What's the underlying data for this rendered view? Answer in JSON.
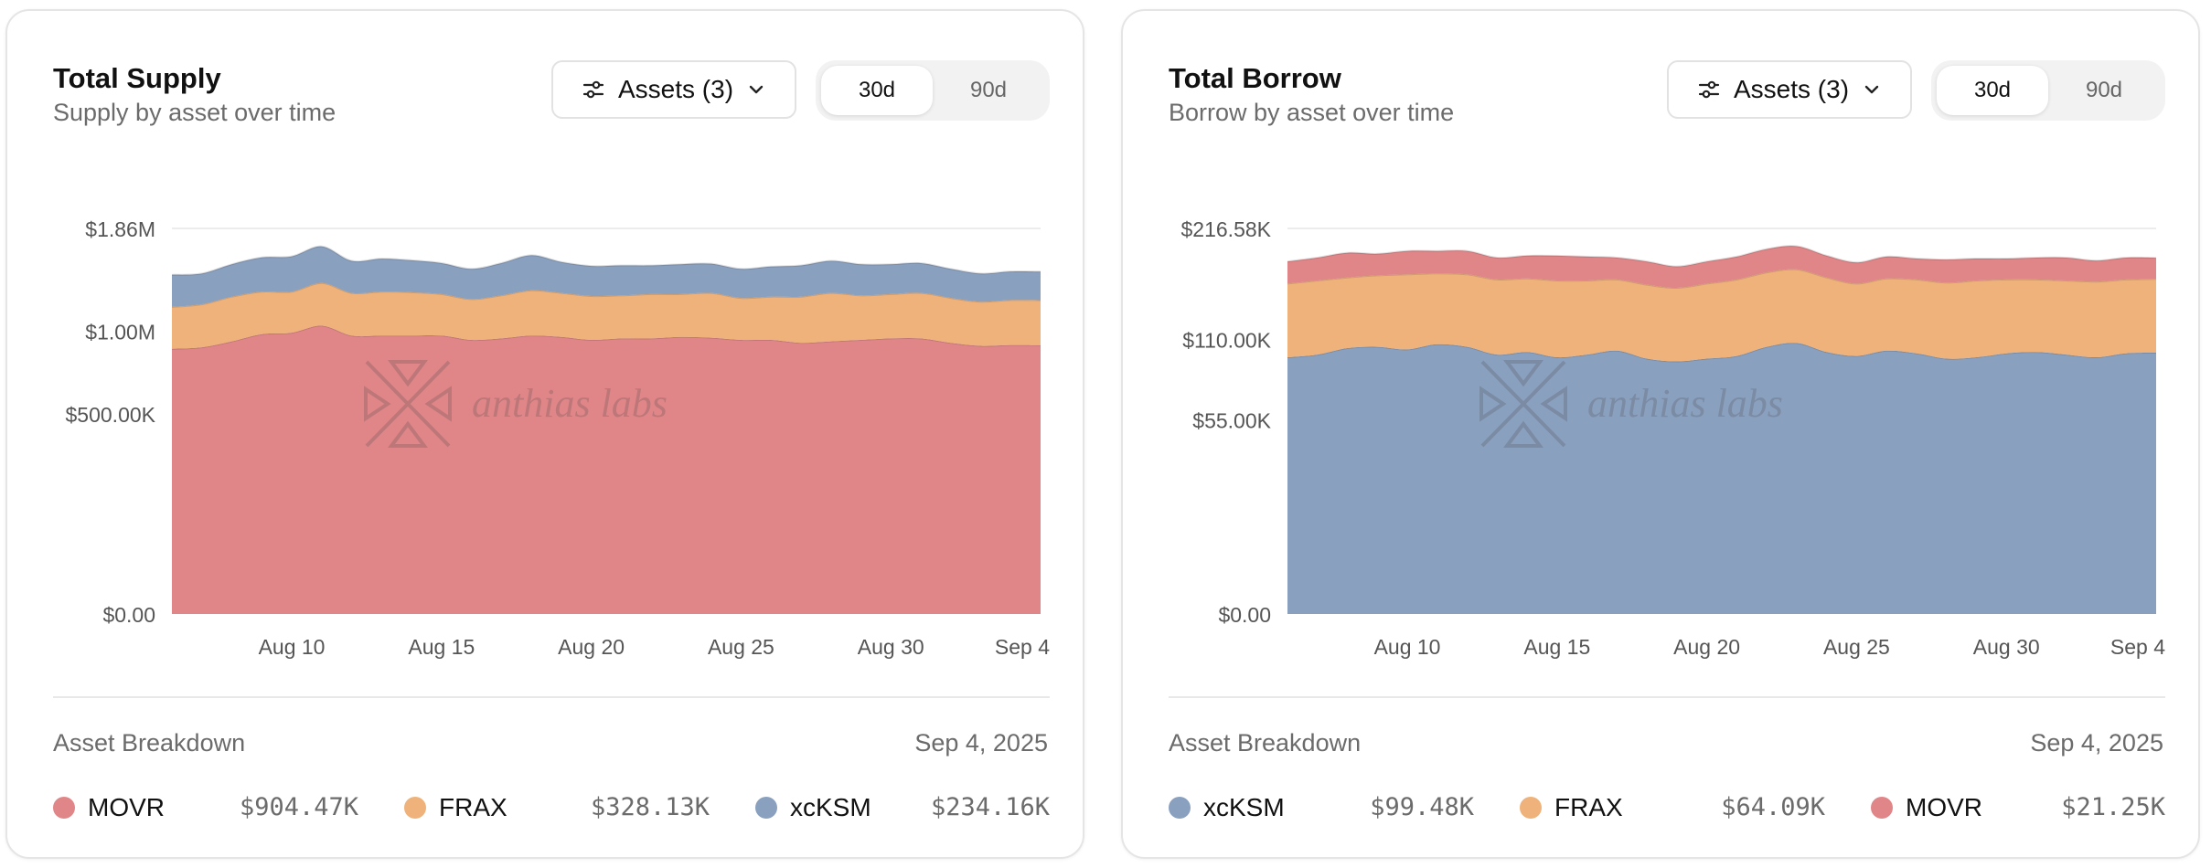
{
  "colors": {
    "red": "#e08688",
    "orange": "#eeb27a",
    "blue": "#8aa0bf"
  },
  "watermark": "anthias labs",
  "dates": {
    "ticks": [
      "Aug 10",
      "Aug 15",
      "Aug 20",
      "Aug 25",
      "Aug 30",
      "Sep 4"
    ]
  },
  "chart_data": [
    {
      "type": "area",
      "stacked": true,
      "title": "Total Supply",
      "subtitle": "Supply by asset over time",
      "xlabel": "",
      "ylabel": "",
      "x_start": "Aug 6",
      "x_end": "Sep 4",
      "x_ticks": [
        "Aug 10",
        "Aug 15",
        "Aug 20",
        "Aug 25",
        "Aug 30",
        "Sep 4"
      ],
      "y_ticks": [
        0,
        500000,
        1000000,
        1860000
      ],
      "y_tick_labels": [
        "$0.00",
        "$500.00K",
        "$1.00M",
        "$1.86M"
      ],
      "y_scale": "sqrt",
      "ylim": [
        0,
        1860000
      ],
      "grid": "horizontal-top",
      "series": [
        {
          "name": "MOVR",
          "color": "red",
          "values": [
            880000,
            890000,
            930000,
            980000,
            990000,
            1040000,
            970000,
            970000,
            970000,
            970000,
            940000,
            950000,
            970000,
            960000,
            940000,
            950000,
            950000,
            960000,
            955000,
            940000,
            940000,
            920000,
            930000,
            940000,
            950000,
            950000,
            920000,
            900000,
            905000,
            904470
          ]
        },
        {
          "name": "FRAX",
          "color": "orange",
          "values": [
            300000,
            310000,
            330000,
            320000,
            310000,
            330000,
            320000,
            330000,
            325000,
            310000,
            300000,
            320000,
            340000,
            330000,
            325000,
            320000,
            330000,
            320000,
            335000,
            310000,
            320000,
            340000,
            360000,
            330000,
            330000,
            340000,
            330000,
            320000,
            328000,
            328130
          ]
        },
        {
          "name": "xcKSM",
          "color": "blue",
          "values": [
            260000,
            250000,
            270000,
            290000,
            300000,
            320000,
            270000,
            280000,
            270000,
            260000,
            250000,
            270000,
            300000,
            260000,
            250000,
            250000,
            240000,
            250000,
            245000,
            240000,
            250000,
            260000,
            270000,
            260000,
            250000,
            250000,
            240000,
            230000,
            235000,
            234160
          ]
        }
      ],
      "breakdown": {
        "title": "Asset Breakdown",
        "date": "Sep 4, 2025",
        "items": [
          {
            "name": "MOVR",
            "value": "$904.47K",
            "color": "red"
          },
          {
            "name": "FRAX",
            "value": "$328.13K",
            "color": "orange"
          },
          {
            "name": "xcKSM",
            "value": "$234.16K",
            "color": "blue"
          }
        ]
      }
    },
    {
      "type": "area",
      "stacked": true,
      "title": "Total Borrow",
      "subtitle": "Borrow by asset over time",
      "xlabel": "",
      "ylabel": "",
      "x_start": "Aug 6",
      "x_end": "Sep 4",
      "x_ticks": [
        "Aug 10",
        "Aug 15",
        "Aug 20",
        "Aug 25",
        "Aug 30",
        "Sep 4"
      ],
      "y_ticks": [
        0,
        55000,
        110000,
        216580
      ],
      "y_tick_labels": [
        "$0.00",
        "$55.00K",
        "$110.00K",
        "$216.58K"
      ],
      "y_scale": "sqrt",
      "ylim": [
        0,
        216580
      ],
      "grid": "horizontal-top",
      "series": [
        {
          "name": "xcKSM",
          "color": "blue",
          "values": [
            96000,
            98000,
            103000,
            104000,
            102000,
            106000,
            104000,
            98000,
            100000,
            96000,
            98000,
            101000,
            95000,
            93000,
            95000,
            97000,
            104000,
            107000,
            100000,
            97000,
            101000,
            99000,
            95000,
            96000,
            99000,
            100000,
            98000,
            96000,
            99000,
            99480
          ]
        },
        {
          "name": "FRAX",
          "color": "orange",
          "values": [
            63000,
            64000,
            62000,
            63000,
            66000,
            63000,
            64000,
            65000,
            64000,
            66000,
            64000,
            62000,
            63000,
            62000,
            64000,
            66000,
            66000,
            66000,
            65000,
            62000,
            63000,
            64000,
            65000,
            66000,
            64000,
            63000,
            64000,
            65000,
            64000,
            64090
          ]
        },
        {
          "name": "MOVR",
          "color": "red",
          "values": [
            22000,
            23000,
            25000,
            22000,
            24000,
            23000,
            24000,
            22000,
            23000,
            25000,
            24000,
            22000,
            23000,
            21000,
            22000,
            23000,
            24000,
            24000,
            22000,
            21000,
            22000,
            21000,
            23000,
            22000,
            21000,
            22000,
            23000,
            21000,
            22000,
            21250
          ]
        }
      ],
      "breakdown": {
        "title": "Asset Breakdown",
        "date": "Sep 4, 2025",
        "items": [
          {
            "name": "xcKSM",
            "value": "$99.48K",
            "color": "blue"
          },
          {
            "name": "FRAX",
            "value": "$64.09K",
            "color": "orange"
          },
          {
            "name": "MOVR",
            "value": "$21.25K",
            "color": "red"
          }
        ]
      }
    }
  ],
  "controls": {
    "assets_label": "Assets (3)",
    "range_30d": "30d",
    "range_90d": "90d",
    "active_range": "30d"
  }
}
